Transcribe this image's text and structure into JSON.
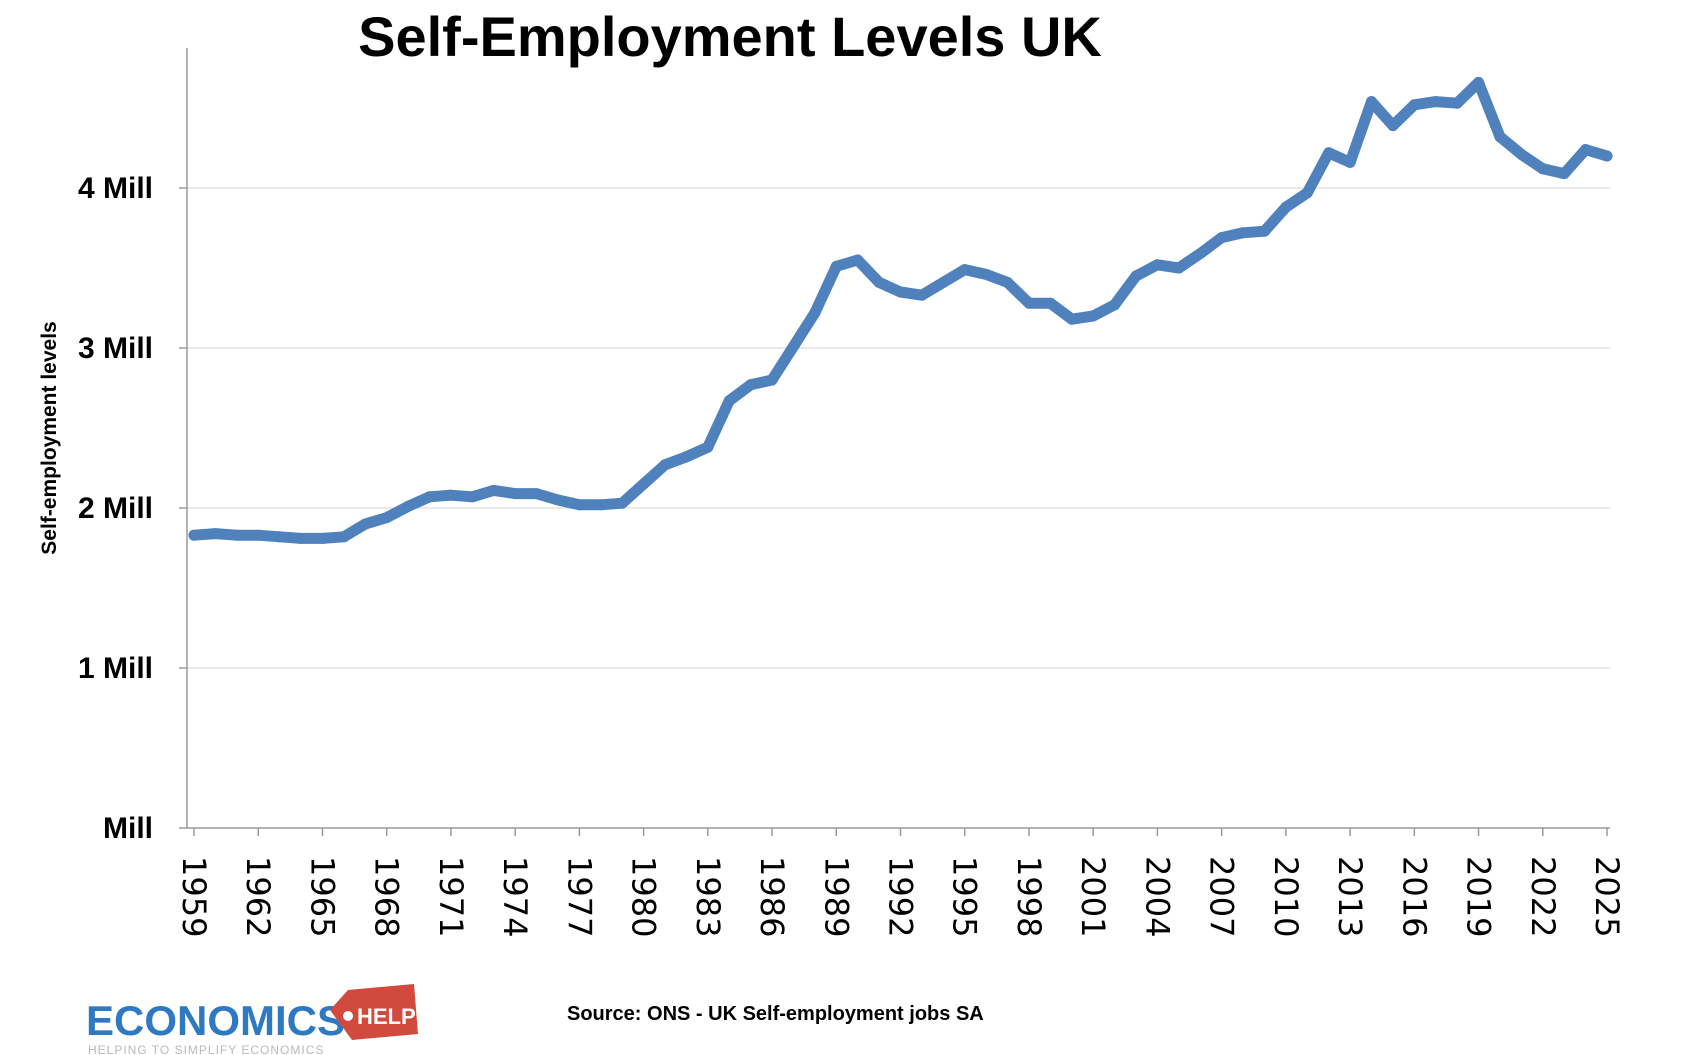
{
  "chart_data": {
    "type": "line",
    "title": "Self-Employment Levels UK",
    "ylabel": "Self-employment levels",
    "xlabel": "",
    "source": "Source: ONS - UK Self-employment jobs SA",
    "ylim": [
      0,
      4.8
    ],
    "xlim": [
      1959,
      2025
    ],
    "y_ticks": [
      {
        "value": 0,
        "label": "Mill"
      },
      {
        "value": 1,
        "label": "1 Mill"
      },
      {
        "value": 2,
        "label": "2 Mill"
      },
      {
        "value": 3,
        "label": "3 Mill"
      },
      {
        "value": 4,
        "label": "4 Mill"
      }
    ],
    "x_ticks": [
      "1959",
      "1962",
      "1965",
      "1968",
      "1971",
      "1974",
      "1977",
      "1980",
      "1983",
      "1986",
      "1989",
      "1992",
      "1995",
      "1998",
      "2001",
      "2004",
      "2007",
      "2010",
      "2013",
      "2016",
      "2019",
      "2022",
      "2025"
    ],
    "grid": "horizontal",
    "line_color": "#4f81bd",
    "series": [
      {
        "x": [
          1959,
          1960,
          1961,
          1962,
          1963,
          1964,
          1965,
          1966,
          1967,
          1968,
          1969,
          1970,
          1971,
          1972,
          1973,
          1974,
          1975,
          1976,
          1977,
          1978,
          1979,
          1980,
          1981,
          1982,
          1983,
          1984,
          1985,
          1986,
          1987,
          1988,
          1989,
          1990,
          1991,
          1992,
          1993,
          1994,
          1995,
          1996,
          1997,
          1998,
          1999,
          2000,
          2001,
          2002,
          2003,
          2004,
          2005,
          2006,
          2007,
          2008,
          2009,
          2010,
          2011,
          2012,
          2013,
          2014,
          2015,
          2016,
          2017,
          2018,
          2019,
          2020,
          2021,
          2022,
          2023,
          2024,
          2025
        ],
        "y": [
          1.83,
          1.84,
          1.83,
          1.83,
          1.82,
          1.81,
          1.81,
          1.82,
          1.9,
          1.94,
          2.01,
          2.07,
          2.08,
          2.07,
          2.11,
          2.09,
          2.09,
          2.05,
          2.02,
          2.02,
          2.03,
          2.15,
          2.27,
          2.32,
          2.38,
          2.67,
          2.77,
          2.8,
          3.01,
          3.22,
          3.51,
          3.55,
          3.41,
          3.35,
          3.33,
          3.41,
          3.49,
          3.46,
          3.41,
          3.28,
          3.28,
          3.18,
          3.2,
          3.27,
          3.45,
          3.52,
          3.5,
          3.59,
          3.69,
          3.72,
          3.73,
          3.88,
          3.97,
          4.22,
          4.16,
          4.54,
          4.39,
          4.52,
          4.54,
          4.53,
          4.66,
          4.32,
          4.21,
          4.12,
          4.09,
          4.24,
          4.2
        ]
      }
    ]
  },
  "logo": {
    "brand": "ECONOMICS",
    "tag": "HELP",
    "tagline": "HELPING TO SIMPLIFY ECONOMICS",
    "brand_color": "#2f79c2",
    "tag_color": "#d14a3d"
  }
}
